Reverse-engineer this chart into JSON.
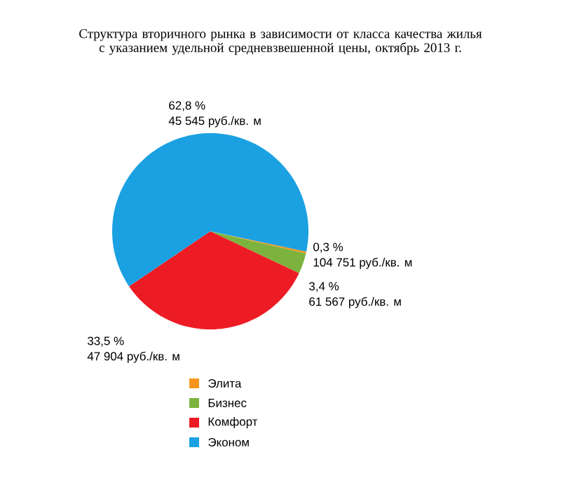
{
  "chart_data": {
    "type": "pie",
    "title": "Структура вторичного рынка в зависимости от класса качества жилья с указанием удельной средневзвешенной цены, октябрь 2013 г.",
    "categories": [
      "Элита",
      "Бизнес",
      "Комфорт",
      "Эконом"
    ],
    "values": [
      0.3,
      3.4,
      33.5,
      62.8
    ],
    "colors": [
      "#f7941d",
      "#7cb33e",
      "#ed1c24",
      "#1ba1e2"
    ],
    "value_labels": [
      "0,3 %",
      "3,4 %",
      "33,5 %",
      "62,8 %"
    ],
    "annotations": [
      "104 751 руб./кв. м",
      "61 567 руб./кв. м",
      "47 904 руб./кв. м",
      "45 545 руб./кв. м"
    ],
    "legend": "bottom"
  }
}
